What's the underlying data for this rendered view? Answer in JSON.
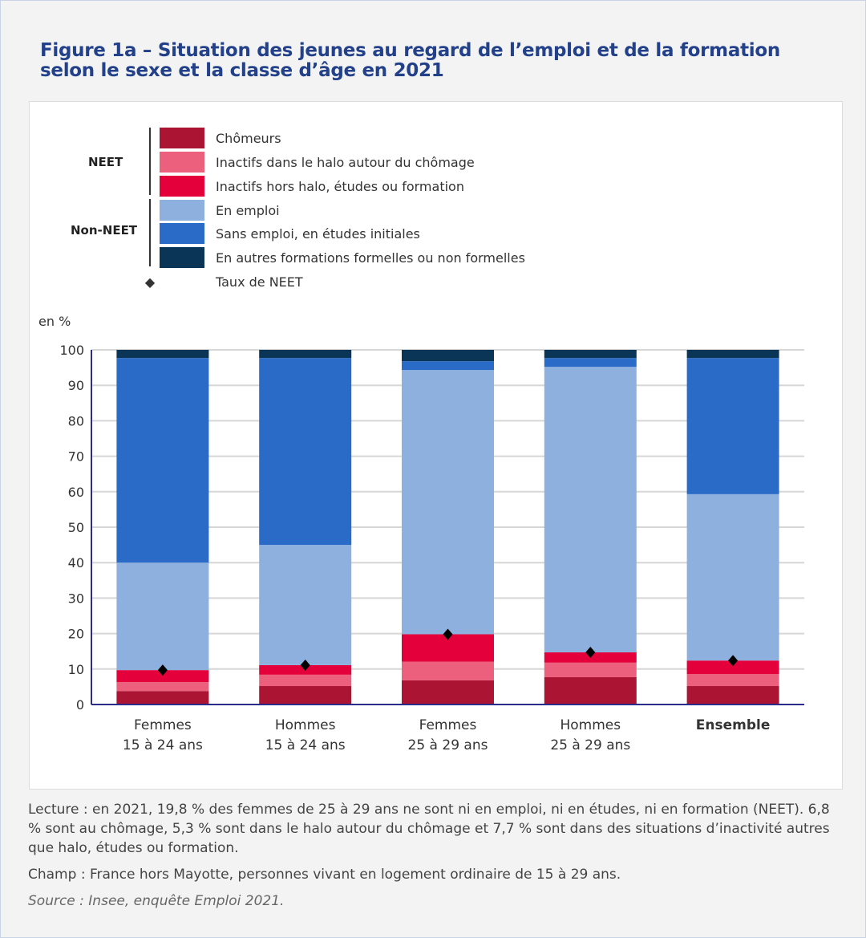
{
  "title": "Figure 1a – Situation des jeunes au regard de l’emploi et de la formation selon le sexe et la classe d’âge en 2021",
  "legend": {
    "groups": {
      "neet": "NEET",
      "non_neet": "Non-NEET"
    },
    "items": [
      {
        "label": "Chômeurs",
        "color": "#ab1533"
      },
      {
        "label": "Inactifs dans le halo autour du chômage",
        "color": "#ec607e"
      },
      {
        "label": "Inactifs hors halo, études ou formation",
        "color": "#e4003b"
      },
      {
        "label": "En emploi",
        "color": "#8eb0df"
      },
      {
        "label": "Sans emploi, en études initiales",
        "color": "#2a6bc8"
      },
      {
        "label": "En autres formations formelles ou non formelles",
        "color": "#0a3556"
      }
    ],
    "marker": {
      "label": "Taux de NEET",
      "icon": "diamond-icon",
      "symbol": "◆"
    }
  },
  "chart_data": {
    "type": "bar",
    "stacked": true,
    "ylabel": "en %",
    "ylim": [
      0,
      100
    ],
    "yticks": [
      0,
      10,
      20,
      30,
      40,
      50,
      60,
      70,
      80,
      90,
      100
    ],
    "grid": true,
    "categories": [
      [
        "Femmes",
        "15 à 24 ans"
      ],
      [
        "Hommes",
        "15 à 24 ans"
      ],
      [
        "Femmes",
        "25 à 29 ans"
      ],
      [
        "Hommes",
        "25 à 29 ans"
      ],
      [
        "Ensemble"
      ]
    ],
    "series": [
      {
        "name": "Chômeurs",
        "values": [
          3.8,
          5.2,
          6.8,
          7.7,
          5.2
        ]
      },
      {
        "name": "Inactifs dans le halo autour du chômage",
        "values": [
          2.5,
          3.2,
          5.3,
          4.1,
          3.4
        ]
      },
      {
        "name": "Inactifs hors halo, études ou formation",
        "values": [
          3.4,
          2.7,
          7.7,
          2.9,
          3.8
        ]
      },
      {
        "name": "En emploi",
        "values": [
          30.3,
          33.9,
          74.5,
          80.5,
          46.9
        ]
      },
      {
        "name": "Sans emploi, en études initiales",
        "values": [
          57.7,
          52.7,
          2.5,
          2.5,
          38.4
        ]
      },
      {
        "name": "En autres formations formelles ou non formelles",
        "values": [
          2.3,
          2.3,
          3.2,
          2.3,
          2.3
        ]
      }
    ],
    "neet_rate": {
      "name": "Taux de NEET",
      "values": [
        9.7,
        11.1,
        19.8,
        14.7,
        12.4
      ]
    }
  },
  "notes": {
    "lecture": "Lecture : en 2021, 19,8 % des femmes de 25 à 29 ans ne sont ni en emploi, ni en études, ni en formation (NEET). 6,8 % sont au chômage, 5,3 % sont dans le halo autour du chômage et 7,7 % sont dans des situations d’inactivité autres que halo, études ou formation.",
    "champ": "Champ : France hors Mayotte, personnes vivant en logement ordinaire de 15 à 29 ans.",
    "source": "Source : Insee, enquête Emploi 2021."
  }
}
